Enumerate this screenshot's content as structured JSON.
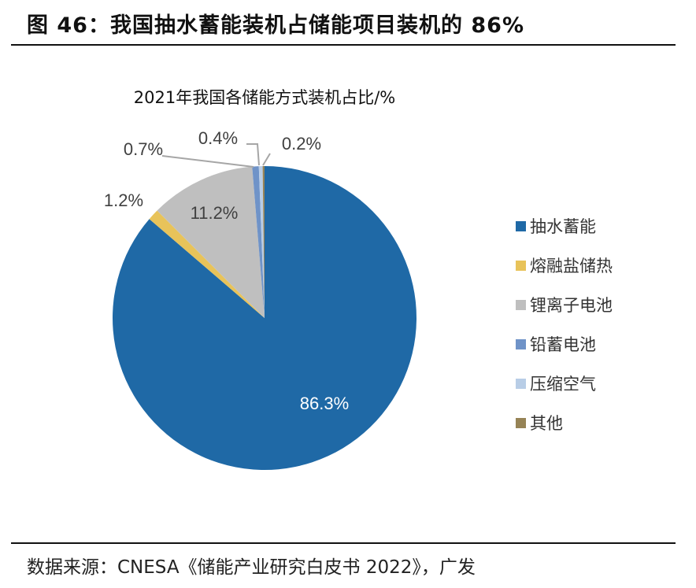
{
  "figure_title": "图 46：我国抽水蓄能装机占储能项目装机的 86%",
  "source": "数据来源：CNESA《储能产业研究白皮书 2022》，广发",
  "chart_data": {
    "type": "pie",
    "title": "2021年我国各储能方式装机占比/%",
    "start": "12 o'clock, clockwise",
    "categories": [
      "抽水蓄能",
      "熔融盐储热",
      "锂离子电池",
      "铅蓄电池",
      "压缩空气",
      "其他"
    ],
    "values": [
      86.3,
      1.2,
      11.2,
      0.7,
      0.4,
      0.2
    ],
    "labels": [
      "86.3%",
      "1.2%",
      "11.2%",
      "0.7%",
      "0.4%",
      "0.2%"
    ],
    "colors": [
      "#1f69a6",
      "#e8c35a",
      "#bfbfbf",
      "#6f93c8",
      "#b8cde6",
      "#968356"
    ],
    "legend": "right"
  }
}
